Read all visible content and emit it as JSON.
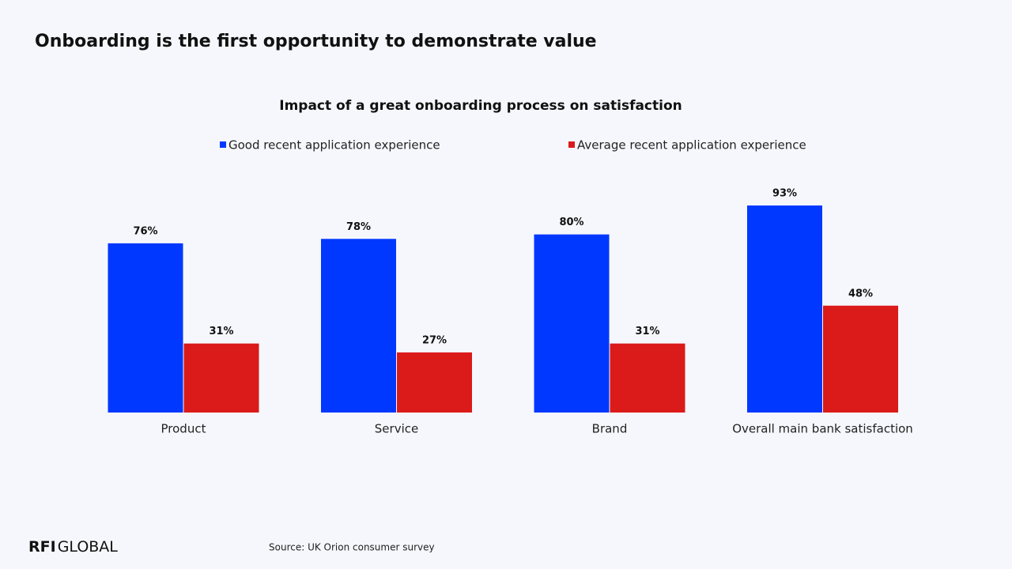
{
  "slide_title": "Onboarding is the first opportunity to demonstrate value",
  "chart_data": {
    "type": "bar",
    "title": "Impact of a great onboarding process on satisfaction",
    "categories": [
      "Product",
      "Service",
      "Brand",
      "Overall main bank satisfaction"
    ],
    "series": [
      {
        "name": "Good recent application experience",
        "color": "#0038ff",
        "values": [
          76,
          78,
          80,
          93
        ],
        "value_labels": [
          "76%",
          "78%",
          "80%",
          "93%"
        ]
      },
      {
        "name": "Average recent application experience",
        "color": "#db1a1a",
        "values": [
          31,
          27,
          31,
          48
        ],
        "value_labels": [
          "31%",
          "27%",
          "31%",
          "48%"
        ]
      }
    ],
    "legend": "top"
  },
  "source": "Source: UK Orion consumer survey",
  "logo": {
    "bold": "RFI",
    "light": "GLOBAL"
  }
}
